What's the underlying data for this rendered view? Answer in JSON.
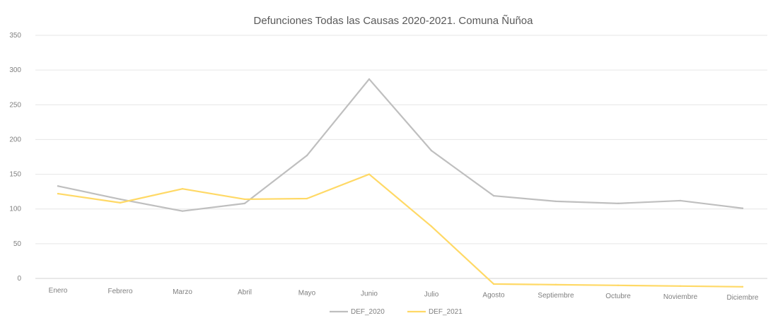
{
  "chart_data": {
    "type": "line",
    "title": "Defunciones Todas las Causas 2020-2021. Comuna Ñuñoa",
    "xlabel": "",
    "ylabel": "",
    "categories": [
      "Enero",
      "Febrero",
      "Marzo",
      "Abril",
      "Mayo",
      "Junio",
      "Julio",
      "Agosto",
      "Septiembre",
      "Octubre",
      "Noviembre",
      "Diciembre"
    ],
    "ylim": [
      0,
      350
    ],
    "yticks": [
      "0",
      "50",
      "100",
      "150",
      "200",
      "250",
      "300",
      "350"
    ],
    "grid": true,
    "legend_position": "bottom",
    "series": [
      {
        "name": "DEF_2020",
        "color": "#bfbfbf",
        "values": [
          133,
          114,
          97,
          108,
          177,
          287,
          184,
          119,
          111,
          108,
          112,
          101
        ]
      },
      {
        "name": "DEF_2021",
        "color": "#ffd966",
        "values": [
          122,
          109,
          129,
          114,
          115,
          150,
          75,
          -8,
          -9,
          -10,
          -11,
          -12
        ]
      }
    ]
  }
}
